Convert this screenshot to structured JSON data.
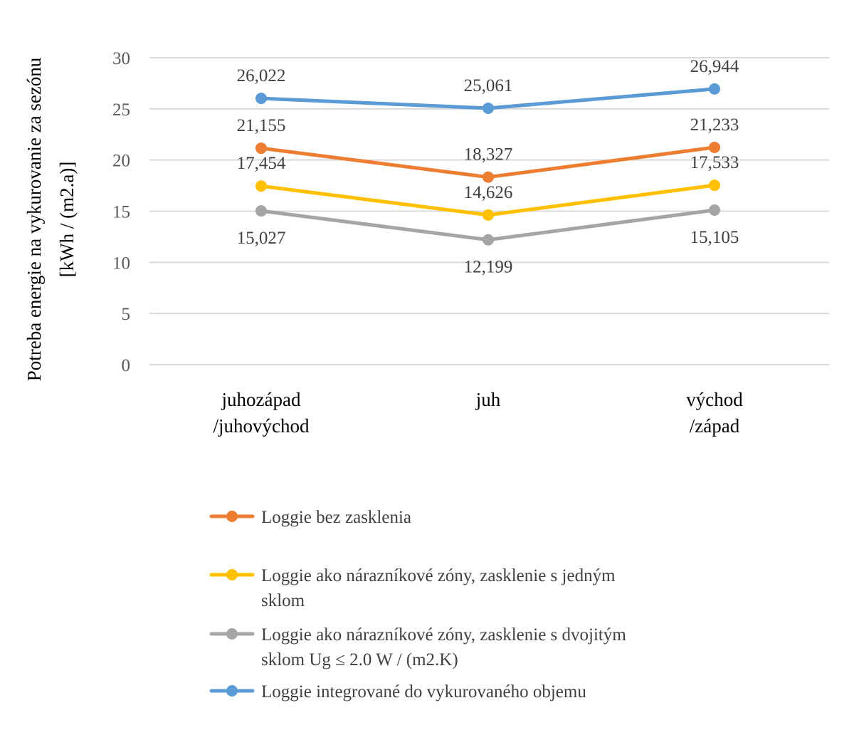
{
  "chart_data": {
    "type": "line",
    "title": "",
    "xlabel": "",
    "ylabel_lines": [
      "Potreba energie na vykurovanie za sezónu",
      "[kWh / (m2.a)]"
    ],
    "categories": [
      [
        "juhozápad",
        "/juhovýchod"
      ],
      [
        "juh"
      ],
      [
        "východ",
        "/západ"
      ]
    ],
    "ylim": [
      0,
      30
    ],
    "yticks": [
      "0",
      "5",
      "10",
      "15",
      "20",
      "25",
      "30"
    ],
    "grid": true,
    "legend_position": "bottom",
    "series": [
      {
        "name": "Loggie bez zasklenia",
        "legend_lines": [
          "Loggie bez zasklenia"
        ],
        "color": "#ED7D31",
        "values": [
          21.155,
          18.327,
          21.233
        ],
        "labels": [
          "21,155",
          "18,327",
          "21,233"
        ],
        "label_position": "above"
      },
      {
        "name": "Loggie ako nárazníkové zóny, zasklenie s jedným sklom",
        "legend_lines": [
          "Loggie ako nárazníkové zóny, zasklenie s jedným",
          "sklom"
        ],
        "color": "#FFC000",
        "values": [
          17.454,
          14.626,
          17.533
        ],
        "labels": [
          "17,454",
          "14,626",
          "17,533"
        ],
        "label_position": "above"
      },
      {
        "name": "Loggie ako nárazníkové zóny, zasklenie s dvojitým sklom Ug ≤ 2.0 W / (m2.K)",
        "legend_lines": [
          "Loggie ako nárazníkové zóny, zasklenie s dvojitým",
          "sklom Ug ≤ 2.0 W / (m2.K)"
        ],
        "color": "#A5A5A5",
        "values": [
          15.027,
          12.199,
          15.105
        ],
        "labels": [
          "15,027",
          "12,199",
          "15,105"
        ],
        "label_position": "below"
      },
      {
        "name": "Loggie integrované do vykurovaného objemu",
        "legend_lines": [
          "Loggie integrované do vykurovaného objemu"
        ],
        "color": "#5B9BD5",
        "values": [
          26.022,
          25.061,
          26.944
        ],
        "labels": [
          "26,022",
          "25,061",
          "26,944"
        ],
        "label_position": "above"
      }
    ]
  }
}
